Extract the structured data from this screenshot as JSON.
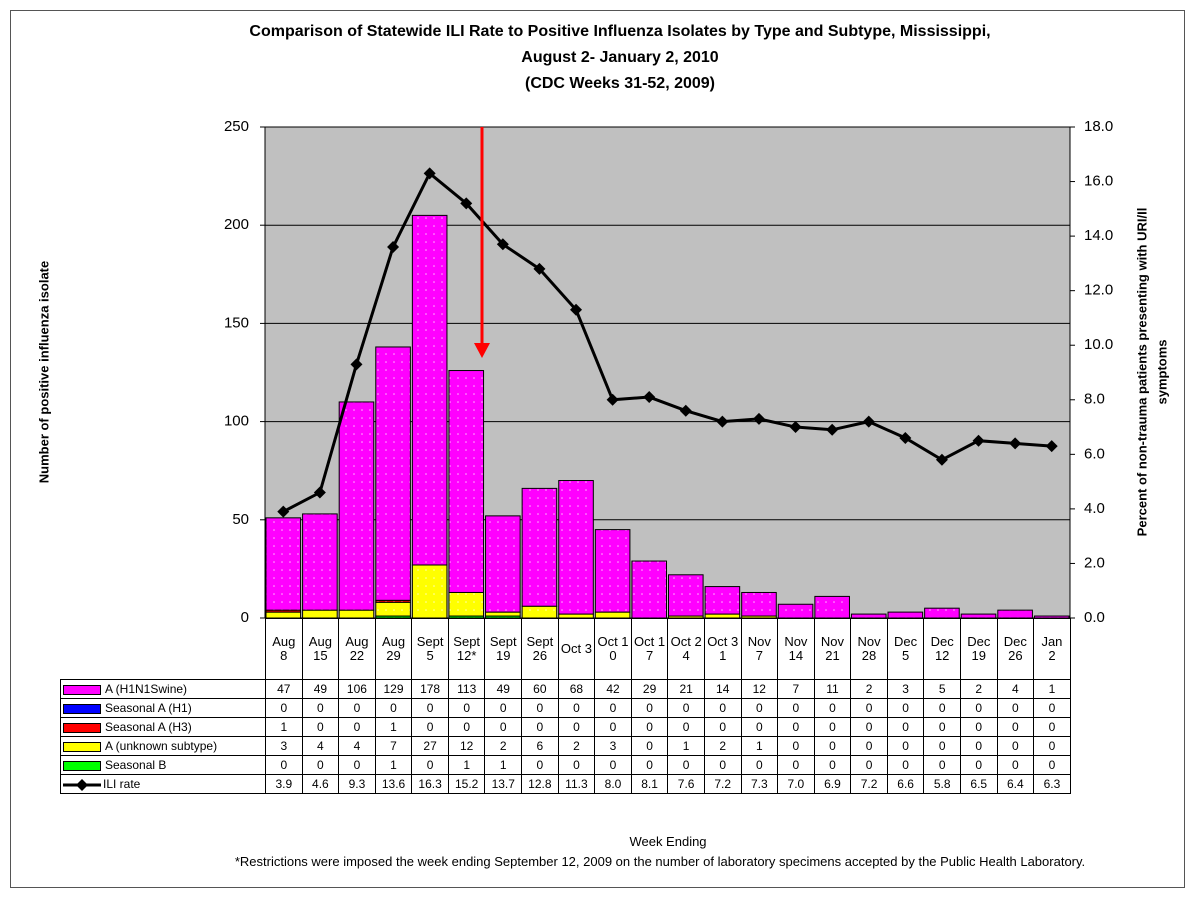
{
  "chart_data": {
    "type": "bar",
    "title": [
      "Comparison of Statewide ILI Rate to Positive Influenza Isolates by Type and Subtype, Mississippi,",
      "August 2- January 2, 2010",
      "(CDC Weeks 31-52, 2009)"
    ],
    "y_label": "Number of positive influenza isolate",
    "y2_label": [
      "Percent of non-trauma patients presenting with URI/Il",
      "symptoms"
    ],
    "x_label": "Week Ending",
    "footnote": "*Restrictions were imposed the week ending September 12, 2009 on the number of laboratory specimens accepted by the Public Health Laboratory.",
    "categories": [
      "Aug 8",
      "Aug 15",
      "Aug 22",
      "Aug 29",
      "Sept 5",
      "Sept 12*",
      "Sept 19",
      "Sept 26",
      "Oct 3",
      "Oct 10",
      "Oct 17",
      "Oct 24",
      "Oct 31",
      "Nov 7",
      "Nov 14",
      "Nov 21",
      "Nov 28",
      "Dec 5",
      "Dec 12",
      "Dec 19",
      "Dec 26",
      "Jan 2"
    ],
    "series": [
      {
        "name": "A (H1N1Swine)",
        "color": "#ff00ff",
        "values": [
          47,
          49,
          106,
          129,
          178,
          113,
          49,
          60,
          68,
          42,
          29,
          21,
          14,
          12,
          7,
          11,
          2,
          3,
          5,
          2,
          4,
          1
        ]
      },
      {
        "name": "Seasonal A (H1)",
        "color": "#0000ff",
        "values": [
          0,
          0,
          0,
          0,
          0,
          0,
          0,
          0,
          0,
          0,
          0,
          0,
          0,
          0,
          0,
          0,
          0,
          0,
          0,
          0,
          0,
          0
        ]
      },
      {
        "name": "Seasonal A (H3)",
        "color": "#ff0000",
        "values": [
          1,
          0,
          0,
          1,
          0,
          0,
          0,
          0,
          0,
          0,
          0,
          0,
          0,
          0,
          0,
          0,
          0,
          0,
          0,
          0,
          0,
          0
        ]
      },
      {
        "name": "A (unknown subtype)",
        "color": "#ffff00",
        "values": [
          3,
          4,
          4,
          7,
          27,
          12,
          2,
          6,
          2,
          3,
          0,
          1,
          2,
          1,
          0,
          0,
          0,
          0,
          0,
          0,
          0,
          0
        ]
      },
      {
        "name": "Seasonal B",
        "color": "#00ff00",
        "values": [
          0,
          0,
          0,
          1,
          0,
          1,
          1,
          0,
          0,
          0,
          0,
          0,
          0,
          0,
          0,
          0,
          0,
          0,
          0,
          0,
          0,
          0
        ]
      },
      {
        "name": "ILI rate",
        "color": "#000000",
        "type": "line",
        "axis": "y2",
        "values": [
          3.9,
          4.6,
          9.3,
          13.6,
          16.3,
          15.2,
          13.7,
          12.8,
          11.3,
          8.0,
          8.1,
          7.6,
          7.2,
          7.3,
          7.0,
          6.9,
          7.2,
          6.6,
          5.8,
          6.5,
          6.4,
          6.3
        ],
        "value_labels": [
          "3.9",
          "4.6",
          "9.3",
          "13.6",
          "16.3",
          "15.2",
          "13.7",
          "12.8",
          "11.3",
          "8.0",
          "8.1",
          "7.6",
          "7.2",
          "7.3",
          "7.0",
          "6.9",
          "7.2",
          "6.6",
          "5.8",
          "6.5",
          "6.4",
          "6.3"
        ]
      }
    ],
    "ylim": [
      0,
      250
    ],
    "yticks": [
      0,
      50,
      100,
      150,
      200,
      250
    ],
    "y2lim": [
      0,
      18
    ],
    "y2ticks": [
      {
        "value": 0,
        "label": "0.0"
      },
      {
        "value": 2,
        "label": "2.0"
      },
      {
        "value": 4,
        "label": "4.0"
      },
      {
        "value": 6,
        "label": "6.0"
      },
      {
        "value": 8,
        "label": "8.0"
      },
      {
        "value": 10,
        "label": "10.0"
      },
      {
        "value": 12,
        "label": "12.0"
      },
      {
        "value": 14,
        "label": "14.0"
      },
      {
        "value": 16,
        "label": "16.0"
      },
      {
        "value": 18,
        "label": "18.0"
      }
    ],
    "grid": true,
    "plot_background": "#c0c0c0"
  }
}
